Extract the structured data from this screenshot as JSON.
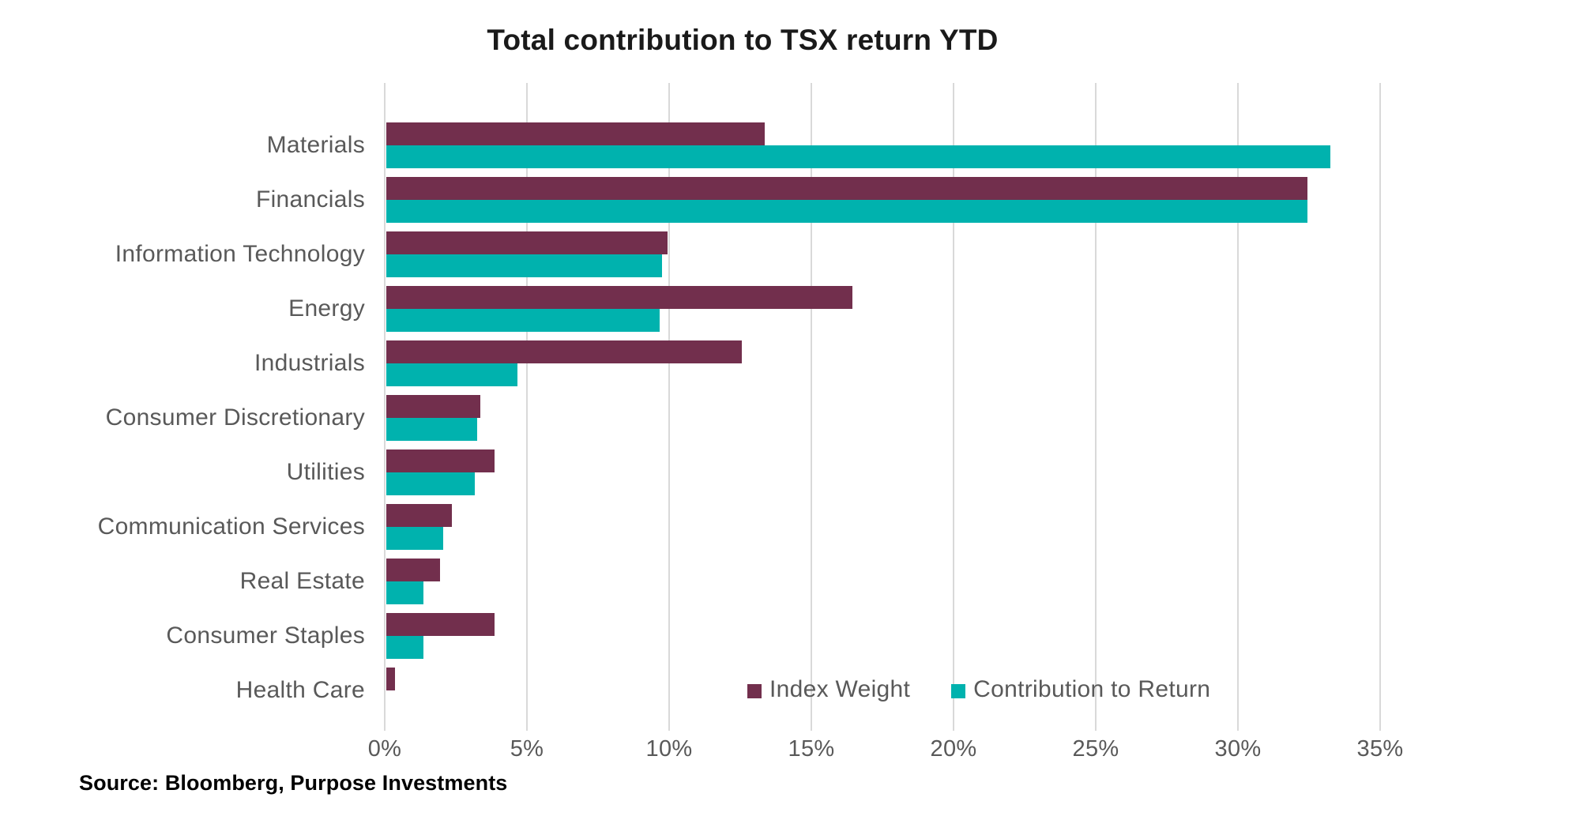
{
  "title": "Total contribution to TSX return YTD",
  "source": "Source: Bloomberg, Purpose Investments",
  "colors": {
    "index_weight": "#722F4D",
    "contribution_to_return": "#00B2AE",
    "gridline": "#D9D9D9",
    "axis_text": "#595959",
    "title_text": "#1A1A1A",
    "background": "#FFFFFF"
  },
  "legend": [
    {
      "label": "Index Weight"
    },
    {
      "label": "Contribution to Return"
    }
  ],
  "chart_data": {
    "type": "bar",
    "orientation": "horizontal",
    "title": "Total contribution to TSX return YTD",
    "xlabel": "",
    "ylabel": "",
    "unit": "%",
    "grid": "vertical",
    "legend_position": "inside-bottom-right",
    "categories": [
      "Materials",
      "Financials",
      "Information Technology",
      "Energy",
      "Industrials",
      "Consumer Discretionary",
      "Utilities",
      "Communication Services",
      "Real Estate",
      "Consumer Staples",
      "Health Care"
    ],
    "series": [
      {
        "name": "Index Weight",
        "color": "#722F4D",
        "values": [
          13.3,
          32.4,
          9.9,
          16.4,
          12.5,
          3.3,
          3.8,
          2.3,
          1.9,
          3.8,
          0.3
        ]
      },
      {
        "name": "Contribution to Return",
        "color": "#00B2AE",
        "values": [
          33.2,
          32.4,
          9.7,
          9.6,
          4.6,
          3.2,
          3.1,
          2.0,
          1.3,
          1.3,
          0.0
        ]
      }
    ],
    "x_axis": {
      "tick_labels": [
        "0%",
        "5%",
        "10%",
        "15%",
        "20%",
        "25%",
        "30%",
        "35%"
      ],
      "tick_values": [
        0,
        5,
        10,
        15,
        20,
        25,
        30,
        35
      ],
      "min": 0,
      "max": 35
    }
  }
}
